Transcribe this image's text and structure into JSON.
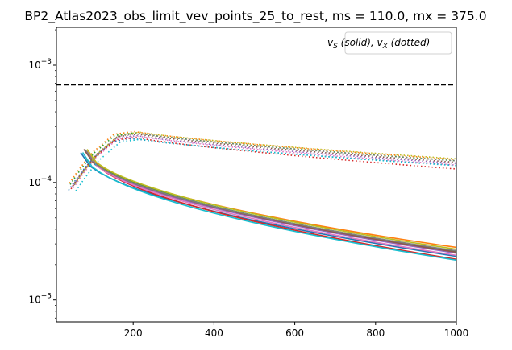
{
  "chart_data": {
    "type": "line",
    "title": "BP2_Atlas2023_obs_limit_vev_points_25_to_rest, ms = 110.0, mx = 375.0",
    "xlabel": "",
    "ylabel": "",
    "xlim": [
      10,
      1000
    ],
    "ylim": [
      6.5e-06,
      0.0021
    ],
    "y_scale": "log",
    "grid": false,
    "legend_placement": "top-right",
    "legend_text": "v_S (solid), v_X (dotted)",
    "legend_parts": {
      "v": "v",
      "sub_s": "S",
      "solid": " (solid), ",
      "sub_x": "X",
      "dotted": " (dotted)"
    },
    "x_ticks": [
      {
        "value": 200,
        "label": "200"
      },
      {
        "value": 400,
        "label": "400"
      },
      {
        "value": 600,
        "label": "600"
      },
      {
        "value": 800,
        "label": "800"
      },
      {
        "value": 1000,
        "label": "1000"
      }
    ],
    "y_ticks": [
      {
        "value": 0.001,
        "mantissa": "10",
        "exponent": "−3"
      },
      {
        "value": 0.0001,
        "mantissa": "10",
        "exponent": "−4"
      },
      {
        "value": 1e-05,
        "mantissa": "10",
        "exponent": "−5"
      }
    ],
    "reference_line": {
      "y": 0.00068,
      "style": "dashed",
      "color": "#000000"
    },
    "colors": [
      "#1f77b4",
      "#ff7f0e",
      "#2ca02c",
      "#d62728",
      "#9467bd",
      "#8c564b",
      "#e377c2",
      "#7f7f7f",
      "#bcbd22",
      "#17becf"
    ],
    "curve_x": [
      40,
      60,
      80,
      100,
      150,
      200,
      250,
      300,
      400,
      500,
      600,
      700,
      800,
      900,
      1000
    ],
    "series": [
      {
        "color": "#1f77b4",
        "solid_start": 70,
        "solid_end": 2.35e-05,
        "dotted_peak": 0.000245,
        "dotted_end": 0.00014
      },
      {
        "color": "#ff7f0e",
        "solid_start": 85,
        "solid_end": 2.8e-05,
        "dotted_peak": 0.000282,
        "dotted_end": 0.000157
      },
      {
        "color": "#2ca02c",
        "solid_start": 80,
        "solid_end": 2.6e-05,
        "dotted_peak": 0.000275,
        "dotted_end": 0.000153
      },
      {
        "color": "#d62728",
        "solid_start": 90,
        "solid_end": 2.22e-05,
        "dotted_peak": 0.000252,
        "dotted_end": 0.00013
      },
      {
        "color": "#9467bd",
        "solid_start": 82,
        "solid_end": 2.5e-05,
        "dotted_peak": 0.00026,
        "dotted_end": 0.000145
      },
      {
        "color": "#8c564b",
        "solid_start": 78,
        "solid_end": 2.55e-05,
        "dotted_peak": 0.000268,
        "dotted_end": 0.000148
      },
      {
        "color": "#e377c2",
        "solid_start": 88,
        "solid_end": 2.4e-05,
        "dotted_peak": 0.000258,
        "dotted_end": 0.00014
      },
      {
        "color": "#7f7f7f",
        "solid_start": 84,
        "solid_end": 2.62e-05,
        "dotted_peak": 0.000272,
        "dotted_end": 0.000152
      },
      {
        "color": "#bcbd22",
        "solid_start": 86,
        "solid_end": 2.7e-05,
        "dotted_peak": 0.000278,
        "dotted_end": 0.000158
      },
      {
        "color": "#17becf",
        "solid_start": 75,
        "solid_end": 2.18e-05,
        "dotted_peak": 0.000242,
        "dotted_end": 0.000138
      }
    ]
  }
}
